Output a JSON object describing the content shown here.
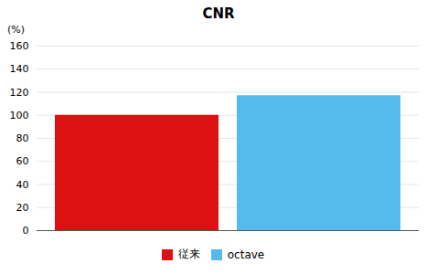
{
  "chart_data": {
    "type": "bar",
    "title": "CNR",
    "ylabel": "(%)",
    "categories": [
      "従来",
      "octave"
    ],
    "values": [
      100,
      117
    ],
    "colors": [
      "#dd1111",
      "#55bbee"
    ],
    "ylim": [
      0,
      160
    ],
    "yticks": [
      0,
      20,
      40,
      60,
      80,
      100,
      120,
      140,
      160
    ],
    "grid": true,
    "legend": "bottom",
    "tick_labels": "y"
  }
}
